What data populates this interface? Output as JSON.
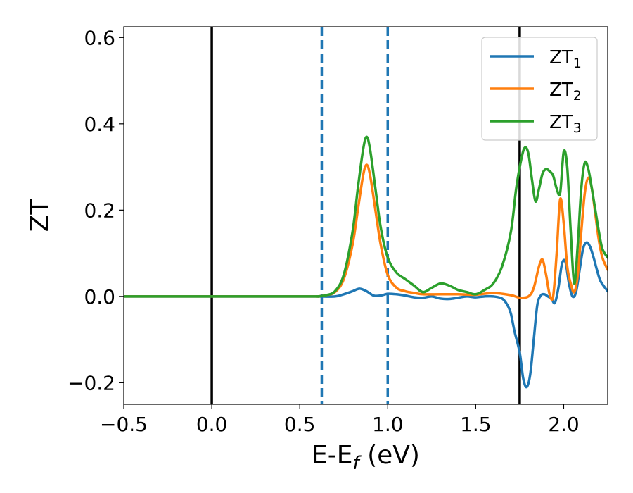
{
  "chart_data": {
    "type": "line",
    "xlabel": "E-E_f (eV)",
    "ylabel": "ZT",
    "xlim": [
      -0.5,
      2.25
    ],
    "ylim": [
      -0.25,
      0.625
    ],
    "xticks": [
      -0.5,
      0.0,
      0.5,
      1.0,
      1.5,
      2.0
    ],
    "yticks": [
      -0.2,
      0.0,
      0.2,
      0.4,
      0.6
    ],
    "xtick_labels": [
      "−0.5",
      "0.0",
      "0.5",
      "1.0",
      "1.5",
      "2.0"
    ],
    "ytick_labels": [
      "−0.2",
      "0.0",
      "0.2",
      "0.4",
      "0.6"
    ],
    "grid": false,
    "legend_position": "top-right",
    "vertical_lines": [
      {
        "x": 0.0,
        "style": "solid",
        "color": "#000000"
      },
      {
        "x": 0.625,
        "style": "dashed",
        "color": "#1f77b4"
      },
      {
        "x": 1.0,
        "style": "dashed",
        "color": "#1f77b4"
      },
      {
        "x": 1.75,
        "style": "solid",
        "color": "#000000"
      }
    ],
    "series": [
      {
        "name": "ZT₁",
        "color": "#1f77b4",
        "x": [
          -0.5,
          0.5,
          0.6,
          0.7,
          0.75,
          0.8,
          0.84,
          0.88,
          0.92,
          0.96,
          1.0,
          1.05,
          1.1,
          1.15,
          1.2,
          1.25,
          1.3,
          1.35,
          1.4,
          1.45,
          1.5,
          1.55,
          1.6,
          1.65,
          1.68,
          1.7,
          1.72,
          1.75,
          1.77,
          1.79,
          1.81,
          1.83,
          1.85,
          1.87,
          1.89,
          1.91,
          1.93,
          1.95,
          1.97,
          1.99,
          2.01,
          2.03,
          2.05,
          2.07,
          2.09,
          2.11,
          2.13,
          2.15,
          2.17,
          2.19,
          2.21,
          2.25
        ],
        "y": [
          0.0,
          0.0,
          0.0,
          0.0,
          0.005,
          0.012,
          0.018,
          0.012,
          0.002,
          0.002,
          0.006,
          0.005,
          0.002,
          -0.002,
          -0.003,
          0.0,
          -0.005,
          -0.006,
          -0.003,
          0.0,
          -0.002,
          0.0,
          0.0,
          -0.005,
          -0.02,
          -0.04,
          -0.08,
          -0.13,
          -0.19,
          -0.21,
          -0.18,
          -0.1,
          -0.02,
          0.002,
          0.005,
          0.0,
          -0.005,
          -0.015,
          0.02,
          0.075,
          0.08,
          0.03,
          0.0,
          0.01,
          0.06,
          0.11,
          0.125,
          0.115,
          0.09,
          0.06,
          0.035,
          0.012
        ]
      },
      {
        "name": "ZT₂",
        "color": "#ff7f0e",
        "x": [
          -0.5,
          0.5,
          0.6,
          0.65,
          0.7,
          0.75,
          0.8,
          0.83,
          0.86,
          0.88,
          0.9,
          0.93,
          0.96,
          1.0,
          1.05,
          1.1,
          1.15,
          1.2,
          1.3,
          1.4,
          1.5,
          1.6,
          1.7,
          1.75,
          1.8,
          1.83,
          1.86,
          1.88,
          1.9,
          1.92,
          1.94,
          1.96,
          1.98,
          2.0,
          2.02,
          2.04,
          2.06,
          2.08,
          2.1,
          2.12,
          2.14,
          2.16,
          2.18,
          2.2,
          2.22,
          2.25
        ],
        "y": [
          0.0,
          0.0,
          0.0,
          0.003,
          0.01,
          0.04,
          0.12,
          0.2,
          0.28,
          0.305,
          0.28,
          0.2,
          0.12,
          0.05,
          0.02,
          0.012,
          0.008,
          0.005,
          0.005,
          0.005,
          0.004,
          0.008,
          0.003,
          -0.003,
          0.0,
          0.02,
          0.07,
          0.085,
          0.05,
          0.005,
          0.0,
          0.1,
          0.225,
          0.17,
          0.07,
          0.03,
          0.01,
          0.05,
          0.15,
          0.24,
          0.275,
          0.25,
          0.19,
          0.13,
          0.09,
          0.062
        ]
      },
      {
        "name": "ZT₃",
        "color": "#2ca02c",
        "x": [
          -0.5,
          0.5,
          0.6,
          0.65,
          0.7,
          0.75,
          0.8,
          0.83,
          0.86,
          0.88,
          0.9,
          0.93,
          0.96,
          1.0,
          1.05,
          1.1,
          1.15,
          1.2,
          1.25,
          1.3,
          1.35,
          1.4,
          1.45,
          1.5,
          1.55,
          1.6,
          1.65,
          1.7,
          1.73,
          1.76,
          1.78,
          1.8,
          1.82,
          1.84,
          1.86,
          1.88,
          1.9,
          1.92,
          1.94,
          1.96,
          1.98,
          2.0,
          2.02,
          2.04,
          2.06,
          2.08,
          2.1,
          2.12,
          2.14,
          2.16,
          2.18,
          2.2,
          2.22,
          2.25
        ],
        "y": [
          0.0,
          0.0,
          0.0,
          0.003,
          0.012,
          0.05,
          0.15,
          0.25,
          0.34,
          0.37,
          0.34,
          0.25,
          0.16,
          0.09,
          0.055,
          0.04,
          0.025,
          0.01,
          0.02,
          0.03,
          0.025,
          0.015,
          0.01,
          0.005,
          0.015,
          0.03,
          0.07,
          0.15,
          0.25,
          0.32,
          0.345,
          0.33,
          0.27,
          0.22,
          0.25,
          0.285,
          0.295,
          0.29,
          0.28,
          0.25,
          0.24,
          0.335,
          0.3,
          0.15,
          0.03,
          0.12,
          0.25,
          0.31,
          0.295,
          0.25,
          0.2,
          0.15,
          0.11,
          0.09
        ]
      }
    ]
  }
}
